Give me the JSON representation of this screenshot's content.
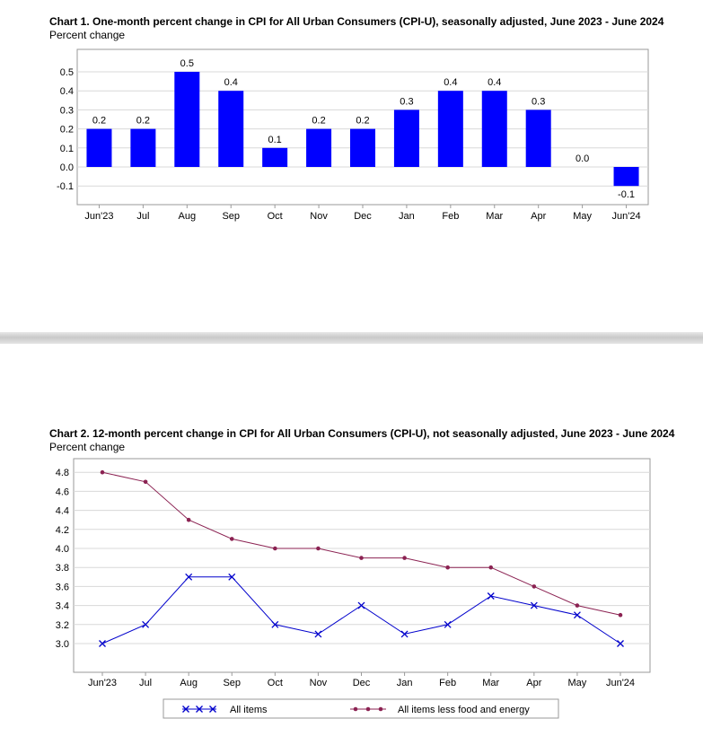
{
  "chart_data": [
    {
      "type": "bar",
      "title": "Chart 1. One-month percent change in CPI for All Urban Consumers (CPI-U), seasonally adjusted, June 2023 - June 2024",
      "subtitle": "Percent change",
      "categories": [
        "Jun'23",
        "Jul",
        "Aug",
        "Sep",
        "Oct",
        "Nov",
        "Dec",
        "Jan",
        "Feb",
        "Mar",
        "Apr",
        "May",
        "Jun'24"
      ],
      "values": [
        0.2,
        0.2,
        0.5,
        0.4,
        0.1,
        0.2,
        0.2,
        0.3,
        0.4,
        0.4,
        0.3,
        0.0,
        -0.1
      ],
      "data_labels": [
        "0.2",
        "0.2",
        "0.5",
        "0.4",
        "0.1",
        "0.2",
        "0.2",
        "0.3",
        "0.4",
        "0.4",
        "0.3",
        "0.0",
        "-0.1"
      ],
      "y_ticks": [
        0.5,
        0.4,
        0.3,
        0.2,
        0.1,
        0.0,
        -0.1
      ],
      "y_tick_labels": [
        "0.5",
        "0.4",
        "0.3",
        "0.2",
        "0.1",
        "0.0",
        "-0.1"
      ],
      "ylim": [
        -0.15,
        0.55
      ],
      "grid": true,
      "bar_color": "#0000ff"
    },
    {
      "type": "line",
      "title": "Chart 2. 12-month percent change in CPI for All Urban Consumers (CPI-U), not seasonally adjusted, June 2023 - June 2024",
      "subtitle": "Percent change",
      "categories": [
        "Jun'23",
        "Jul",
        "Aug",
        "Sep",
        "Oct",
        "Nov",
        "Dec",
        "Jan",
        "Feb",
        "Mar",
        "Apr",
        "May",
        "Jun'24"
      ],
      "series": [
        {
          "name": "All items",
          "values": [
            3.0,
            3.2,
            3.7,
            3.7,
            3.2,
            3.1,
            3.4,
            3.1,
            3.2,
            3.5,
            3.4,
            3.3,
            3.0
          ],
          "color": "#0000cc",
          "marker": "x"
        },
        {
          "name": "All items less food and energy",
          "values": [
            4.8,
            4.7,
            4.3,
            4.1,
            4.0,
            4.0,
            3.9,
            3.9,
            3.8,
            3.8,
            3.6,
            3.4,
            3.3
          ],
          "color": "#8b2252",
          "marker": "dot"
        }
      ],
      "y_ticks": [
        4.8,
        4.6,
        4.4,
        4.2,
        4.0,
        3.8,
        3.6,
        3.4,
        3.2,
        3.0
      ],
      "y_tick_labels": [
        "4.8",
        "4.6",
        "4.4",
        "4.2",
        "4.0",
        "3.8",
        "3.6",
        "3.4",
        "3.2",
        "3.0"
      ],
      "ylim": [
        2.7,
        4.9
      ],
      "grid": true,
      "legend_position": "bottom"
    }
  ]
}
